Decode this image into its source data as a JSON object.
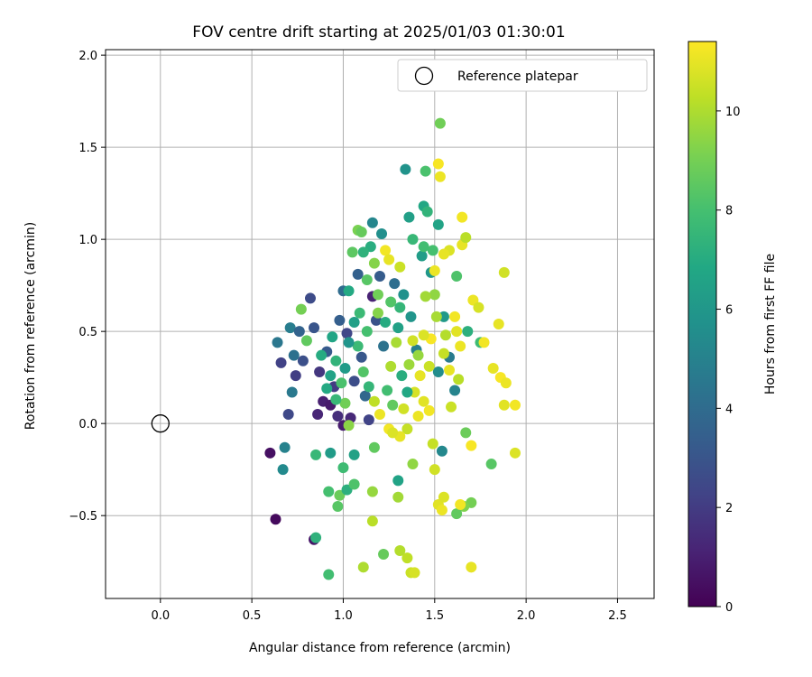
{
  "chart_data": {
    "type": "scatter",
    "title": "FOV centre drift starting at 2025/01/03 01:30:01",
    "xlabel": "Angular distance from reference (arcmin)",
    "ylabel": "Rotation from reference (arcmin)",
    "xlim": [
      -0.3,
      2.7
    ],
    "ylim": [
      -0.95,
      2.03
    ],
    "xticks": [
      0.0,
      0.5,
      1.0,
      1.5,
      2.0,
      2.5
    ],
    "xtick_labels": [
      "0.0",
      "0.5",
      "1.0",
      "1.5",
      "2.0",
      "2.5"
    ],
    "yticks": [
      -0.5,
      0.0,
      0.5,
      1.0,
      1.5,
      2.0
    ],
    "ytick_labels": [
      "−0.5",
      "0.0",
      "0.5",
      "1.0",
      "1.5",
      "2.0"
    ],
    "grid": true,
    "legend": {
      "position": "top-right",
      "entries": [
        "Reference platepar"
      ]
    },
    "reference_point": {
      "x": 0.0,
      "y": 0.0,
      "label": "Reference platepar"
    },
    "colorbar": {
      "label": "Hours from first FF file",
      "range": [
        0,
        11.4
      ],
      "ticks": [
        0,
        2,
        4,
        6,
        8,
        10
      ],
      "tick_labels": [
        "0",
        "2",
        "4",
        "6",
        "8",
        "10"
      ],
      "colormap": "viridis"
    },
    "points": [
      {
        "x": 0.63,
        "y": -0.52,
        "h": 0.3
      },
      {
        "x": 0.6,
        "y": -0.16,
        "h": 0.5
      },
      {
        "x": 0.84,
        "y": -0.63,
        "h": 0.7
      },
      {
        "x": 0.86,
        "y": 0.05,
        "h": 1.2
      },
      {
        "x": 0.7,
        "y": 0.05,
        "h": 2.5
      },
      {
        "x": 0.82,
        "y": 0.68,
        "h": 2.6
      },
      {
        "x": 0.78,
        "y": 0.34,
        "h": 2.8
      },
      {
        "x": 0.84,
        "y": 0.52,
        "h": 3.0
      },
      {
        "x": 0.66,
        "y": 0.33,
        "h": 2.2
      },
      {
        "x": 0.64,
        "y": 0.44,
        "h": 4.5
      },
      {
        "x": 0.71,
        "y": 0.52,
        "h": 4.8
      },
      {
        "x": 0.68,
        "y": -0.13,
        "h": 5.0
      },
      {
        "x": 0.67,
        "y": -0.25,
        "h": 5.4
      },
      {
        "x": 0.76,
        "y": 0.5,
        "h": 3.6
      },
      {
        "x": 0.74,
        "y": 0.26,
        "h": 2.1
      },
      {
        "x": 0.73,
        "y": 0.37,
        "h": 4.2
      },
      {
        "x": 0.72,
        "y": 0.17,
        "h": 4.6
      },
      {
        "x": 0.87,
        "y": 0.28,
        "h": 1.8
      },
      {
        "x": 0.89,
        "y": 0.12,
        "h": 1.0
      },
      {
        "x": 0.91,
        "y": 0.39,
        "h": 3.2
      },
      {
        "x": 0.93,
        "y": 0.1,
        "h": 0.8
      },
      {
        "x": 0.95,
        "y": 0.2,
        "h": 2.0
      },
      {
        "x": 0.97,
        "y": 0.04,
        "h": 1.5
      },
      {
        "x": 0.98,
        "y": 0.56,
        "h": 3.4
      },
      {
        "x": 1.0,
        "y": -0.01,
        "h": 0.9
      },
      {
        "x": 1.02,
        "y": 0.49,
        "h": 2.4
      },
      {
        "x": 1.04,
        "y": 0.03,
        "h": 1.3
      },
      {
        "x": 1.0,
        "y": 0.72,
        "h": 4.0
      },
      {
        "x": 1.06,
        "y": 0.23,
        "h": 2.7
      },
      {
        "x": 1.1,
        "y": 0.36,
        "h": 3.1
      },
      {
        "x": 1.12,
        "y": 0.15,
        "h": 3.8
      },
      {
        "x": 1.14,
        "y": 0.02,
        "h": 2.3
      },
      {
        "x": 1.16,
        "y": 0.69,
        "h": 1.1
      },
      {
        "x": 1.18,
        "y": 0.56,
        "h": 2.9
      },
      {
        "x": 1.2,
        "y": 0.8,
        "h": 3.3
      },
      {
        "x": 1.22,
        "y": 0.42,
        "h": 4.3
      },
      {
        "x": 1.08,
        "y": 0.81,
        "h": 3.5
      },
      {
        "x": 1.16,
        "y": 1.09,
        "h": 5.2
      },
      {
        "x": 1.21,
        "y": 1.03,
        "h": 5.6
      },
      {
        "x": 1.34,
        "y": 1.38,
        "h": 5.8
      },
      {
        "x": 1.28,
        "y": 0.76,
        "h": 4.1
      },
      {
        "x": 1.33,
        "y": 0.7,
        "h": 5.7
      },
      {
        "x": 1.37,
        "y": 0.58,
        "h": 5.9
      },
      {
        "x": 1.43,
        "y": 0.91,
        "h": 6.3
      },
      {
        "x": 1.4,
        "y": 0.4,
        "h": 4.9
      },
      {
        "x": 1.48,
        "y": 0.82,
        "h": 6.0
      },
      {
        "x": 1.52,
        "y": 1.08,
        "h": 6.6
      },
      {
        "x": 1.52,
        "y": 0.28,
        "h": 5.5
      },
      {
        "x": 1.54,
        "y": -0.15,
        "h": 5.3
      },
      {
        "x": 1.61,
        "y": 0.18,
        "h": 5.1
      },
      {
        "x": 1.58,
        "y": 0.36,
        "h": 4.7
      },
      {
        "x": 1.36,
        "y": 1.12,
        "h": 6.4
      },
      {
        "x": 1.44,
        "y": 1.18,
        "h": 6.8
      },
      {
        "x": 1.46,
        "y": 1.15,
        "h": 7.4
      },
      {
        "x": 1.38,
        "y": 1.0,
        "h": 7.6
      },
      {
        "x": 1.49,
        "y": 0.94,
        "h": 8.0
      },
      {
        "x": 1.62,
        "y": 0.8,
        "h": 8.2
      },
      {
        "x": 1.55,
        "y": 0.58,
        "h": 6.1
      },
      {
        "x": 1.68,
        "y": 0.5,
        "h": 7.2
      },
      {
        "x": 1.75,
        "y": 0.44,
        "h": 7.8
      },
      {
        "x": 1.81,
        "y": -0.22,
        "h": 8.4
      },
      {
        "x": 1.67,
        "y": -0.05,
        "h": 8.8
      },
      {
        "x": 1.7,
        "y": -0.43,
        "h": 9.0
      },
      {
        "x": 1.66,
        "y": -0.45,
        "h": 9.2
      },
      {
        "x": 1.62,
        "y": -0.49,
        "h": 8.6
      },
      {
        "x": 1.53,
        "y": 1.63,
        "h": 8.9
      },
      {
        "x": 1.45,
        "y": 1.37,
        "h": 8.1
      },
      {
        "x": 1.44,
        "y": 0.96,
        "h": 7.9
      },
      {
        "x": 1.08,
        "y": 1.05,
        "h": 9.1
      },
      {
        "x": 1.1,
        "y": 1.04,
        "h": 8.7
      },
      {
        "x": 1.15,
        "y": 0.96,
        "h": 7.1
      },
      {
        "x": 1.05,
        "y": 0.93,
        "h": 8.5
      },
      {
        "x": 1.11,
        "y": 0.93,
        "h": 7.3
      },
      {
        "x": 1.03,
        "y": 0.72,
        "h": 6.9
      },
      {
        "x": 1.09,
        "y": 0.6,
        "h": 7.7
      },
      {
        "x": 1.19,
        "y": 0.6,
        "h": 9.3
      },
      {
        "x": 1.26,
        "y": 0.66,
        "h": 8.3
      },
      {
        "x": 1.31,
        "y": 0.63,
        "h": 7.5
      },
      {
        "x": 0.88,
        "y": 0.37,
        "h": 7.0
      },
      {
        "x": 0.8,
        "y": 0.45,
        "h": 8.6
      },
      {
        "x": 0.77,
        "y": 0.62,
        "h": 9.0
      },
      {
        "x": 0.94,
        "y": 0.47,
        "h": 6.7
      },
      {
        "x": 0.96,
        "y": 0.34,
        "h": 7.4
      },
      {
        "x": 0.99,
        "y": 0.22,
        "h": 8.1
      },
      {
        "x": 1.01,
        "y": 0.11,
        "h": 8.9
      },
      {
        "x": 1.03,
        "y": -0.01,
        "h": 9.4
      },
      {
        "x": 1.0,
        "y": -0.24,
        "h": 7.8
      },
      {
        "x": 1.06,
        "y": -0.17,
        "h": 6.5
      },
      {
        "x": 0.85,
        "y": -0.17,
        "h": 7.6
      },
      {
        "x": 0.92,
        "y": -0.37,
        "h": 8.0
      },
      {
        "x": 0.98,
        "y": -0.39,
        "h": 8.8
      },
      {
        "x": 1.02,
        "y": -0.36,
        "h": 7.2
      },
      {
        "x": 0.97,
        "y": -0.45,
        "h": 8.4
      },
      {
        "x": 0.92,
        "y": -0.82,
        "h": 7.9
      },
      {
        "x": 0.85,
        "y": -0.62,
        "h": 7.3
      },
      {
        "x": 0.93,
        "y": -0.16,
        "h": 6.2
      },
      {
        "x": 1.06,
        "y": -0.33,
        "h": 8.2
      },
      {
        "x": 1.17,
        "y": -0.13,
        "h": 8.6
      },
      {
        "x": 1.16,
        "y": -0.37,
        "h": 9.6
      },
      {
        "x": 1.22,
        "y": -0.71,
        "h": 8.7
      },
      {
        "x": 1.16,
        "y": -0.53,
        "h": 10.2
      },
      {
        "x": 1.11,
        "y": -0.78,
        "h": 10.0
      },
      {
        "x": 1.3,
        "y": -0.31,
        "h": 6.6
      },
      {
        "x": 1.3,
        "y": -0.4,
        "h": 9.8
      },
      {
        "x": 1.37,
        "y": -0.81,
        "h": 10.5
      },
      {
        "x": 1.35,
        "y": -0.73,
        "h": 10.3
      },
      {
        "x": 1.39,
        "y": -0.81,
        "h": 10.7
      },
      {
        "x": 1.31,
        "y": -0.69,
        "h": 10.1
      },
      {
        "x": 1.38,
        "y": -0.22,
        "h": 9.5
      },
      {
        "x": 1.49,
        "y": -0.11,
        "h": 10.4
      },
      {
        "x": 1.5,
        "y": -0.25,
        "h": 10.6
      },
      {
        "x": 1.52,
        "y": -0.44,
        "h": 10.9
      },
      {
        "x": 1.55,
        "y": -0.4,
        "h": 10.8
      },
      {
        "x": 1.54,
        "y": -0.47,
        "h": 11.1
      },
      {
        "x": 1.64,
        "y": -0.44,
        "h": 11.2
      },
      {
        "x": 1.7,
        "y": -0.78,
        "h": 11.0
      },
      {
        "x": 1.7,
        "y": -0.12,
        "h": 11.3
      },
      {
        "x": 1.77,
        "y": 0.44,
        "h": 11.2
      },
      {
        "x": 1.82,
        "y": 0.3,
        "h": 11.0
      },
      {
        "x": 1.86,
        "y": 0.25,
        "h": 11.3
      },
      {
        "x": 1.89,
        "y": 0.22,
        "h": 11.1
      },
      {
        "x": 1.88,
        "y": 0.1,
        "h": 10.9
      },
      {
        "x": 1.94,
        "y": 0.1,
        "h": 11.2
      },
      {
        "x": 1.94,
        "y": -0.16,
        "h": 10.8
      },
      {
        "x": 1.85,
        "y": 0.54,
        "h": 11.0
      },
      {
        "x": 1.88,
        "y": 0.82,
        "h": 10.6
      },
      {
        "x": 1.71,
        "y": 0.67,
        "h": 11.1
      },
      {
        "x": 1.74,
        "y": 0.63,
        "h": 10.7
      },
      {
        "x": 1.65,
        "y": 0.97,
        "h": 11.0
      },
      {
        "x": 1.67,
        "y": 1.01,
        "h": 10.2
      },
      {
        "x": 1.65,
        "y": 1.12,
        "h": 11.2
      },
      {
        "x": 1.52,
        "y": 1.41,
        "h": 11.3
      },
      {
        "x": 1.53,
        "y": 1.34,
        "h": 11.1
      },
      {
        "x": 1.58,
        "y": 0.94,
        "h": 10.8
      },
      {
        "x": 1.55,
        "y": 0.92,
        "h": 11.0
      },
      {
        "x": 1.5,
        "y": 0.83,
        "h": 11.1
      },
      {
        "x": 1.61,
        "y": 0.58,
        "h": 11.2
      },
      {
        "x": 1.62,
        "y": 0.5,
        "h": 10.9
      },
      {
        "x": 1.64,
        "y": 0.42,
        "h": 11.1
      },
      {
        "x": 1.58,
        "y": 0.29,
        "h": 11.0
      },
      {
        "x": 1.55,
        "y": 0.38,
        "h": 10.4
      },
      {
        "x": 1.48,
        "y": 0.46,
        "h": 11.3
      },
      {
        "x": 1.44,
        "y": 0.48,
        "h": 10.8
      },
      {
        "x": 1.38,
        "y": 0.45,
        "h": 10.6
      },
      {
        "x": 1.47,
        "y": 0.31,
        "h": 10.5
      },
      {
        "x": 1.42,
        "y": 0.26,
        "h": 11.0
      },
      {
        "x": 1.39,
        "y": 0.17,
        "h": 10.7
      },
      {
        "x": 1.44,
        "y": 0.12,
        "h": 10.9
      },
      {
        "x": 1.47,
        "y": 0.07,
        "h": 11.2
      },
      {
        "x": 1.41,
        "y": 0.04,
        "h": 11.1
      },
      {
        "x": 1.33,
        "y": 0.08,
        "h": 10.6
      },
      {
        "x": 1.35,
        "y": -0.03,
        "h": 10.4
      },
      {
        "x": 1.31,
        "y": -0.07,
        "h": 11.0
      },
      {
        "x": 1.25,
        "y": -0.03,
        "h": 11.2
      },
      {
        "x": 1.27,
        "y": -0.05,
        "h": 10.8
      },
      {
        "x": 1.2,
        "y": 0.05,
        "h": 11.1
      },
      {
        "x": 1.17,
        "y": 0.12,
        "h": 10.3
      },
      {
        "x": 1.23,
        "y": 0.94,
        "h": 11.2
      },
      {
        "x": 1.25,
        "y": 0.89,
        "h": 11.0
      },
      {
        "x": 1.31,
        "y": 0.85,
        "h": 10.5
      },
      {
        "x": 1.26,
        "y": 0.31,
        "h": 10.0
      },
      {
        "x": 1.29,
        "y": 0.44,
        "h": 9.9
      },
      {
        "x": 1.36,
        "y": 0.32,
        "h": 9.7
      },
      {
        "x": 1.41,
        "y": 0.37,
        "h": 9.6
      },
      {
        "x": 1.5,
        "y": 0.7,
        "h": 9.5
      },
      {
        "x": 1.45,
        "y": 0.69,
        "h": 9.8
      },
      {
        "x": 1.51,
        "y": 0.58,
        "h": 9.9
      },
      {
        "x": 1.56,
        "y": 0.48,
        "h": 10.1
      },
      {
        "x": 1.59,
        "y": 0.09,
        "h": 10.5
      },
      {
        "x": 1.63,
        "y": 0.24,
        "h": 10.2
      },
      {
        "x": 1.17,
        "y": 0.87,
        "h": 9.3
      },
      {
        "x": 1.19,
        "y": 0.7,
        "h": 8.9
      },
      {
        "x": 1.13,
        "y": 0.78,
        "h": 8.4
      },
      {
        "x": 1.13,
        "y": 0.5,
        "h": 8.0
      },
      {
        "x": 1.08,
        "y": 0.42,
        "h": 7.7
      },
      {
        "x": 1.11,
        "y": 0.28,
        "h": 8.3
      },
      {
        "x": 1.14,
        "y": 0.2,
        "h": 7.5
      },
      {
        "x": 1.24,
        "y": 0.18,
        "h": 7.9
      },
      {
        "x": 1.27,
        "y": 0.1,
        "h": 8.6
      },
      {
        "x": 1.32,
        "y": 0.26,
        "h": 7.1
      },
      {
        "x": 1.35,
        "y": 0.17,
        "h": 6.8
      },
      {
        "x": 1.3,
        "y": 0.52,
        "h": 6.5
      },
      {
        "x": 1.23,
        "y": 0.55,
        "h": 7.0
      },
      {
        "x": 1.06,
        "y": 0.55,
        "h": 6.4
      },
      {
        "x": 1.03,
        "y": 0.44,
        "h": 5.9
      },
      {
        "x": 1.01,
        "y": 0.3,
        "h": 6.2
      },
      {
        "x": 0.91,
        "y": 0.19,
        "h": 6.9
      },
      {
        "x": 0.96,
        "y": 0.13,
        "h": 7.6
      },
      {
        "x": 0.93,
        "y": 0.26,
        "h": 6.6
      }
    ]
  }
}
